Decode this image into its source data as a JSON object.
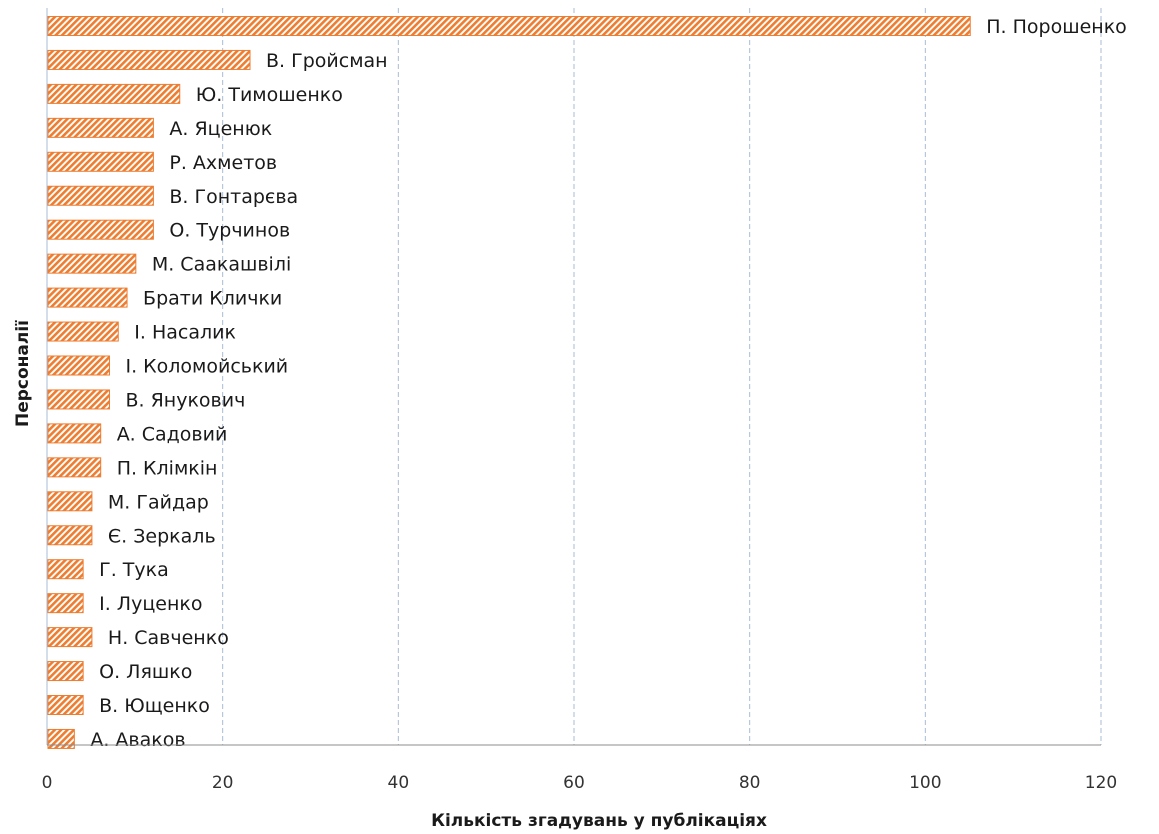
{
  "chart_data": {
    "type": "bar",
    "orientation": "horizontal",
    "xlabel": "Кількість згадувань у публікаціях",
    "ylabel": "Персоналії",
    "xlim": [
      0,
      120
    ],
    "xticks": [
      0,
      20,
      40,
      60,
      80,
      100,
      120
    ],
    "grid": "vertical dashed",
    "legend": "none",
    "bar_color": "#ED7D31",
    "bar_pattern": "diagonal hatch",
    "grid_color": "#A9BED6",
    "categories": [
      "П. Порошенко",
      "В. Гройсман",
      "Ю. Тимошенко",
      "А. Яценюк",
      "Р. Ахметов",
      "В. Гонтарєва",
      "О. Турчинов",
      "М. Саакашвілі",
      "Брати Клички",
      "І. Насалик",
      "І. Коломойський",
      "В. Янукович",
      "А. Садовий",
      "П. Клімкін",
      "М. Гайдар",
      "Є. Зеркаль",
      "Г. Тука",
      "І. Луценко",
      "Н. Савченко",
      "О. Ляшко",
      "В. Ющенко",
      "А. Аваков"
    ],
    "values": [
      105,
      23,
      15,
      12,
      12,
      12,
      12,
      10,
      9,
      8,
      7,
      7,
      6,
      6,
      5,
      5,
      4,
      4,
      5,
      4,
      4,
      3
    ]
  }
}
